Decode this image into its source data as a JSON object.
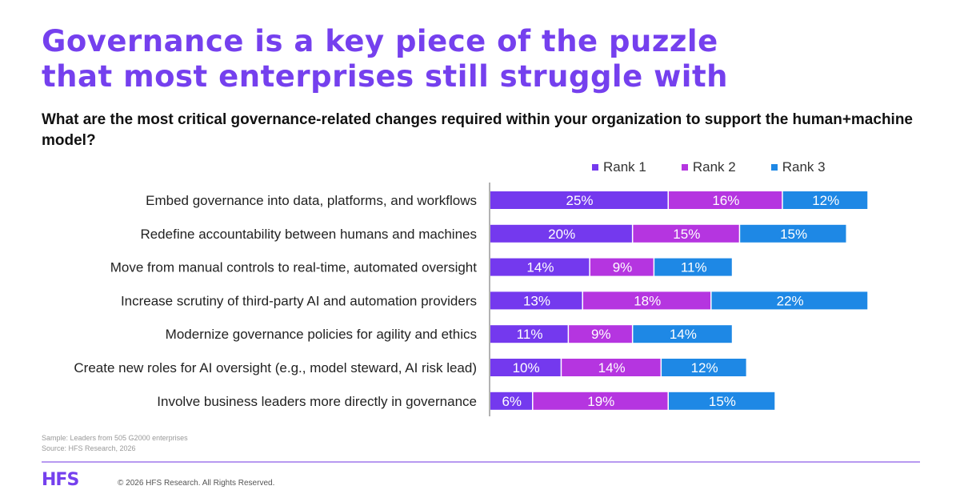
{
  "header": {
    "title_line1": "Governance is a key piece of the puzzle",
    "title_line2": "that most enterprises still struggle with",
    "question": "What are the most critical governance-related changes required within your organization to support the human+machine model?"
  },
  "colors": {
    "title": "#7540ee",
    "rank1": "#7439ee",
    "rank2": "#b535e0",
    "rank3": "#1e88e5"
  },
  "chart_data": {
    "type": "bar",
    "orientation": "horizontal",
    "stacked": true,
    "title": "What are the most critical governance-related changes required within your organization to support the human+machine model?",
    "xlabel": "",
    "ylabel": "",
    "legend_position": "top-right",
    "grid": false,
    "value_format": "percent",
    "categories": [
      "Embed governance into data, platforms, and workflows",
      "Redefine accountability between humans and machines",
      "Move from manual controls to real-time, automated oversight",
      "Increase scrutiny of third-party AI and automation providers",
      "Modernize governance policies for agility and ethics",
      "Create new roles for AI oversight (e.g., model steward, AI risk lead)",
      "Involve business leaders more directly in governance"
    ],
    "series": [
      {
        "name": "Rank 1",
        "color": "#7439ee",
        "values": [
          25,
          20,
          14,
          13,
          11,
          10,
          6
        ]
      },
      {
        "name": "Rank 2",
        "color": "#b535e0",
        "values": [
          16,
          15,
          9,
          18,
          9,
          14,
          19
        ]
      },
      {
        "name": "Rank 3",
        "color": "#1e88e5",
        "values": [
          12,
          15,
          11,
          22,
          14,
          12,
          15
        ]
      }
    ],
    "xlim": [
      0,
      60
    ]
  },
  "footer": {
    "sample": "Sample: Leaders from 505 G2000 enterprises",
    "source": "Source: HFS Research, 2026",
    "logo": "HFS",
    "copyright": "© 2026 HFS Research. All Rights Reserved."
  }
}
